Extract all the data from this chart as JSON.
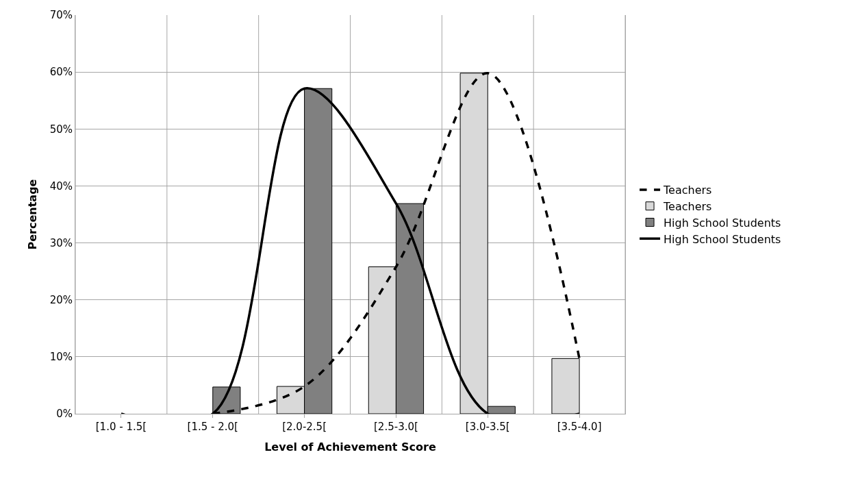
{
  "chart_data": {
    "type": "bar",
    "xlabel": "Level of Achievement Score",
    "ylabel": "Percentage",
    "categories": [
      "[1.0 - 1.5[",
      "[1.5 - 2.0[",
      "[2.0-2.5[",
      "[2.5-3.0[",
      "[3.0-3.5[",
      "[3.5-4.0]"
    ],
    "series": [
      {
        "name": "Teachers",
        "type": "line",
        "line_style": "dashed",
        "color": "#000000",
        "values": [
          null,
          0,
          4.8,
          25.8,
          59.8,
          9.7
        ]
      },
      {
        "name": "Teachers",
        "color": "#d9d9d9",
        "values": [
          null,
          null,
          4.8,
          25.8,
          59.8,
          9.7
        ]
      },
      {
        "name": "High School Students",
        "color": "#808080",
        "values": [
          null,
          4.7,
          57.1,
          36.9,
          1.3,
          null
        ]
      },
      {
        "name": "High School Students",
        "type": "line",
        "line_style": "solid",
        "color": "#000000",
        "values": [
          0,
          0,
          57.1,
          36.9,
          0,
          0
        ]
      }
    ],
    "ylim": [
      0,
      70
    ],
    "yticks": [
      {
        "value": 0,
        "label": "0%"
      },
      {
        "value": 10,
        "label": "10%"
      },
      {
        "value": 20,
        "label": "20%"
      },
      {
        "value": 30,
        "label": "30%"
      },
      {
        "value": 40,
        "label": "40%"
      },
      {
        "value": 50,
        "label": "50%"
      },
      {
        "value": 60,
        "label": "60%"
      },
      {
        "value": 70,
        "label": "70%"
      }
    ],
    "grid": true,
    "legend": "right",
    "marker": "none"
  }
}
